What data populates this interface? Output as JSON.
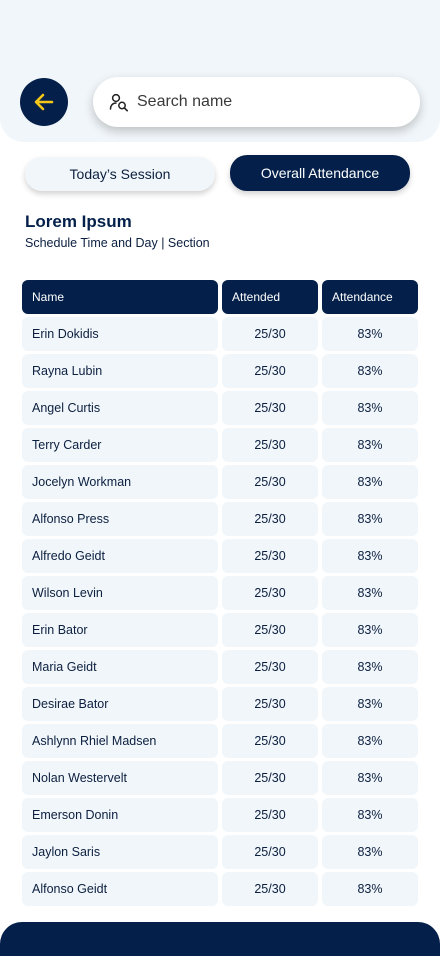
{
  "search": {
    "placeholder": "Search name"
  },
  "tabs": {
    "today": "Today’s Session",
    "overall": "Overall Attendance"
  },
  "section": {
    "title": "Lorem Ipsum",
    "subtitle": "Schedule Time and Day | Section"
  },
  "table": {
    "headers": {
      "name": "Name",
      "attended": "Attended",
      "attendance": "Attendance"
    },
    "rows": [
      {
        "name": "Erin Dokidis",
        "attended": "25/30",
        "attendance": "83%"
      },
      {
        "name": "Rayna Lubin",
        "attended": "25/30",
        "attendance": "83%"
      },
      {
        "name": "Angel Curtis",
        "attended": "25/30",
        "attendance": "83%"
      },
      {
        "name": "Terry Carder",
        "attended": "25/30",
        "attendance": "83%"
      },
      {
        "name": "Jocelyn Workman",
        "attended": "25/30",
        "attendance": "83%"
      },
      {
        "name": "Alfonso Press",
        "attended": "25/30",
        "attendance": "83%"
      },
      {
        "name": "Alfredo Geidt",
        "attended": "25/30",
        "attendance": "83%"
      },
      {
        "name": "Wilson Levin",
        "attended": "25/30",
        "attendance": "83%"
      },
      {
        "name": "Erin Bator",
        "attended": "25/30",
        "attendance": "83%"
      },
      {
        "name": "Maria Geidt",
        "attended": "25/30",
        "attendance": "83%"
      },
      {
        "name": "Desirae Bator",
        "attended": "25/30",
        "attendance": "83%"
      },
      {
        "name": "Ashlynn Rhiel Madsen",
        "attended": "25/30",
        "attendance": "83%"
      },
      {
        "name": "Nolan Westervelt",
        "attended": "25/30",
        "attendance": "83%"
      },
      {
        "name": "Emerson Donin",
        "attended": "25/30",
        "attendance": "83%"
      },
      {
        "name": "Jaylon Saris",
        "attended": "25/30",
        "attendance": "83%"
      },
      {
        "name": "Alfonso Geidt",
        "attended": "25/30",
        "attendance": "83%"
      }
    ]
  },
  "icons": {
    "back": "arrow-left-icon",
    "search": "user-search-icon"
  },
  "colors": {
    "primary": "#04204a",
    "accent": "#f5c518",
    "surface": "#f1f6fa"
  }
}
